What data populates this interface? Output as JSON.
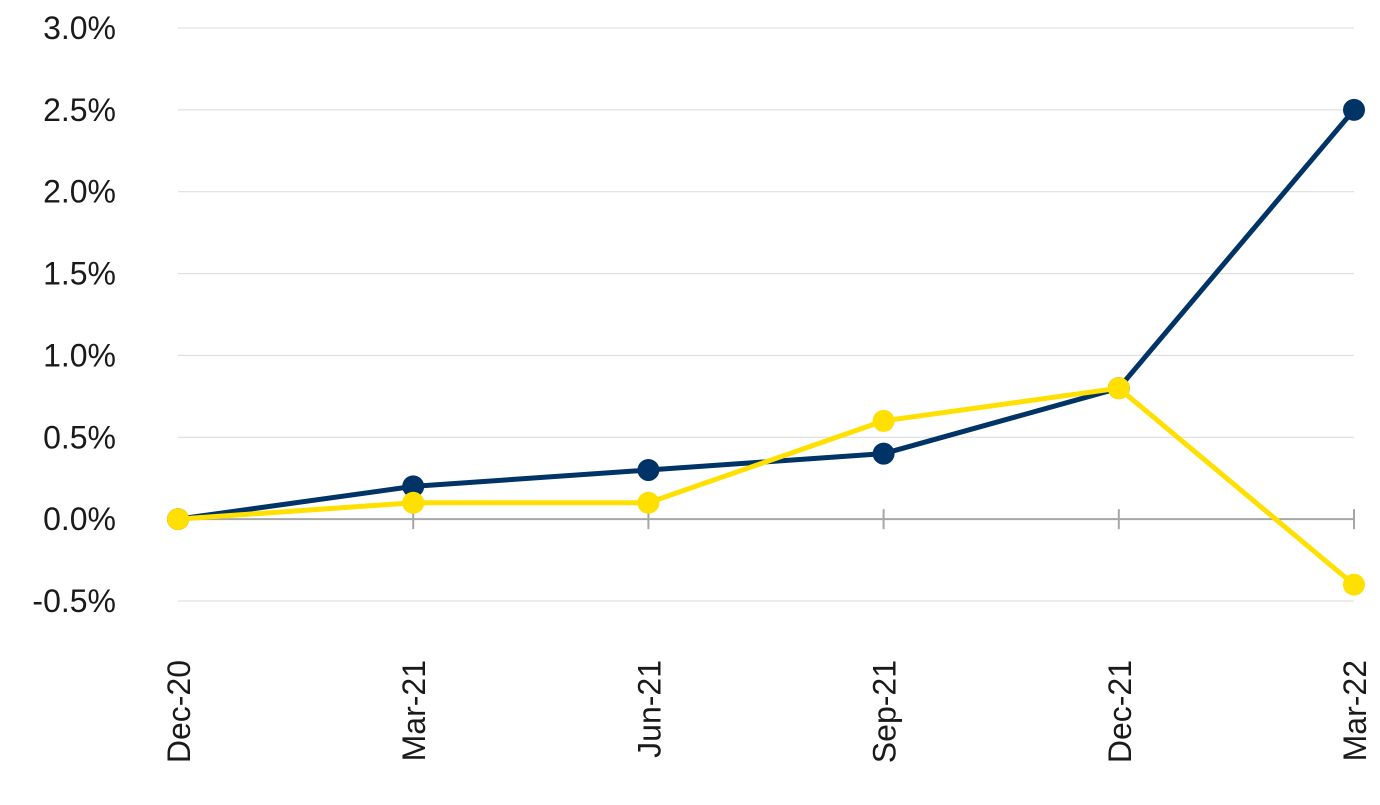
{
  "chart_data": {
    "type": "line",
    "title": "",
    "xlabel": "",
    "ylabel": "",
    "categories": [
      "Dec-20",
      "Mar-21",
      "Jun-21",
      "Sep-21",
      "Dec-21",
      "Mar-22"
    ],
    "y_tick_labels": [
      "3.0%",
      "2.5%",
      "2.0%",
      "1.5%",
      "1.0%",
      "0.5%",
      "0.0%",
      "-0.5%"
    ],
    "y_ticks": [
      3.0,
      2.5,
      2.0,
      1.5,
      1.0,
      0.5,
      0.0,
      -0.5
    ],
    "ylim": [
      -0.5,
      3.0
    ],
    "grid": true,
    "legend": "none",
    "series": [
      {
        "values": [
          0.0,
          0.2,
          0.3,
          0.4,
          0.8,
          2.5
        ],
        "color": "#003366"
      },
      {
        "values": [
          0.0,
          0.1,
          0.1,
          0.6,
          0.8,
          -0.4
        ],
        "color": "#FFE000"
      }
    ],
    "colors": {
      "gridline": "#d9d9d9",
      "axis": "#a6a6a6",
      "text": "#1a1a1a"
    }
  }
}
